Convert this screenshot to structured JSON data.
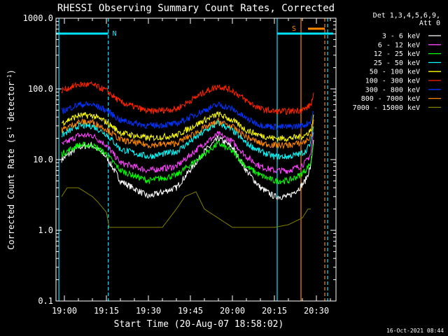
{
  "chart_data": {
    "type": "line",
    "title": "RHESSI Observing Summary Count Rates, Corrected",
    "xlabel": "Start Time (20-Aug-07 18:58:02)",
    "ylabel": "Corrected Count Rate (s⁻¹ detector⁻¹)",
    "ylabel_base": "Corrected Count Rate (s",
    "ylabel_sup1": "-1",
    "ylabel_mid": " detector",
    "ylabel_sup2": "-1",
    "ylabel_end": ")",
    "yscale": "log",
    "ylim": [
      0.1,
      1000
    ],
    "xlim": [
      "18:57:00",
      "20:37:00"
    ],
    "x_ticks": [
      "19:00",
      "19:15",
      "19:30",
      "19:45",
      "20:00",
      "20:15",
      "20:30"
    ],
    "y_ticks": [
      "0.1",
      "1.0",
      "10.0",
      "100.0",
      "1000.0"
    ],
    "legend_header": [
      "Det 1,3,4,5,6,9,",
      "Att 0"
    ],
    "legend_position": "right, outside",
    "series": [
      {
        "name": "3 - 6 keV",
        "color": "#ffffff",
        "x": [
          "18:59",
          "19:05",
          "19:10",
          "19:15",
          "19:20",
          "19:30",
          "19:40",
          "19:50",
          "19:55",
          "20:00",
          "20:05",
          "20:10",
          "20:15",
          "20:20",
          "20:24",
          "20:26",
          "20:28",
          "20:29"
        ],
        "values": [
          10,
          15,
          16,
          11,
          5,
          3,
          4,
          13,
          20,
          15,
          7,
          4,
          3,
          3,
          4,
          5,
          8,
          20
        ]
      },
      {
        "name": "6 - 12 keV",
        "color": "#ff44ff",
        "x": [
          "18:59",
          "19:05",
          "19:10",
          "19:15",
          "19:20",
          "19:30",
          "19:40",
          "19:50",
          "19:55",
          "20:00",
          "20:05",
          "20:10",
          "20:15",
          "20:20",
          "20:24",
          "20:26",
          "20:28",
          "20:29"
        ],
        "values": [
          16,
          22,
          22,
          16,
          9,
          7,
          8,
          17,
          23,
          18,
          11,
          8,
          7,
          7,
          8,
          9,
          12,
          25
        ]
      },
      {
        "name": "12 - 25 keV",
        "color": "#00ff00",
        "x": [
          "18:59",
          "19:05",
          "19:10",
          "19:15",
          "19:20",
          "19:30",
          "19:40",
          "19:50",
          "19:55",
          "20:00",
          "20:05",
          "20:10",
          "20:15",
          "20:20",
          "20:24",
          "20:26",
          "20:28",
          "20:29"
        ],
        "values": [
          12,
          16,
          16,
          12,
          7,
          5,
          6,
          12,
          17,
          13,
          8,
          6,
          5,
          5,
          6,
          7,
          9,
          18
        ]
      },
      {
        "name": "25 - 50 keV",
        "color": "#00ffff",
        "x": [
          "18:59",
          "19:05",
          "19:10",
          "19:15",
          "19:20",
          "19:30",
          "19:40",
          "19:50",
          "19:55",
          "20:00",
          "20:05",
          "20:10",
          "20:15",
          "20:20",
          "20:24",
          "20:26",
          "20:28",
          "20:29"
        ],
        "values": [
          22,
          30,
          30,
          23,
          14,
          11,
          13,
          25,
          33,
          26,
          17,
          13,
          11,
          11,
          12,
          13,
          17,
          30
        ]
      },
      {
        "name": "50 - 100 keV",
        "color": "#ffff00",
        "x": [
          "18:59",
          "19:05",
          "19:10",
          "19:15",
          "19:20",
          "19:30",
          "19:40",
          "19:50",
          "19:55",
          "20:00",
          "20:05",
          "20:10",
          "20:15",
          "20:20",
          "20:24",
          "20:26",
          "20:28",
          "20:29"
        ],
        "values": [
          33,
          42,
          42,
          34,
          24,
          20,
          22,
          36,
          44,
          36,
          26,
          22,
          20,
          20,
          21,
          22,
          26,
          40
        ]
      },
      {
        "name": "100 - 300 keV",
        "color": "#ff2200",
        "x": [
          "18:59",
          "19:05",
          "19:10",
          "19:15",
          "19:20",
          "19:30",
          "19:40",
          "19:50",
          "19:55",
          "20:00",
          "20:05",
          "20:10",
          "20:15",
          "20:20",
          "20:24",
          "20:26",
          "20:28",
          "20:29"
        ],
        "values": [
          95,
          115,
          115,
          95,
          65,
          48,
          52,
          90,
          110,
          95,
          68,
          52,
          48,
          48,
          50,
          52,
          60,
          80
        ]
      },
      {
        "name": "300 - 800 keV",
        "color": "#0033ff",
        "x": [
          "18:59",
          "19:05",
          "19:10",
          "19:15",
          "19:20",
          "19:30",
          "19:40",
          "19:50",
          "19:55",
          "20:00",
          "20:05",
          "20:10",
          "20:15",
          "20:20",
          "20:24",
          "20:26",
          "20:28",
          "20:29"
        ],
        "values": [
          48,
          60,
          60,
          50,
          36,
          30,
          32,
          50,
          60,
          52,
          38,
          31,
          29,
          29,
          30,
          31,
          35,
          50
        ]
      },
      {
        "name": "800 - 7000 keV",
        "color": "#ff8800",
        "x": [
          "18:59",
          "19:05",
          "19:10",
          "19:15",
          "19:20",
          "19:30",
          "19:40",
          "19:50",
          "19:55",
          "20:00",
          "20:05",
          "20:10",
          "20:15",
          "20:20",
          "20:24",
          "20:26",
          "20:28",
          "20:29"
        ],
        "values": [
          26,
          34,
          34,
          27,
          19,
          16,
          17,
          28,
          35,
          29,
          21,
          17,
          16,
          16,
          17,
          18,
          21,
          35
        ]
      },
      {
        "name": "7000 - 15000 keV",
        "color": "#808000",
        "x": [
          "18:59",
          "19:01",
          "19:05",
          "19:10",
          "19:12",
          "19:15",
          "19:16",
          "19:18",
          "19:20",
          "19:35",
          "19:40",
          "19:43",
          "19:47",
          "19:50",
          "20:00",
          "20:15",
          "20:20",
          "20:25",
          "20:27",
          "20:28"
        ],
        "values": [
          3,
          4,
          4,
          3,
          2.5,
          1.8,
          1.1,
          1.1,
          1.1,
          1.1,
          2,
          3,
          3.5,
          2,
          1.1,
          1.1,
          1.2,
          1.5,
          2,
          2
        ]
      }
    ],
    "annotations": [
      {
        "text": "N",
        "color": "#00e5ff"
      },
      {
        "text": "S",
        "color": "#ff8800"
      }
    ],
    "night_intervals": [
      [
        "18:57:00",
        "19:15:40"
      ],
      [
        "20:16:00",
        "20:36:00"
      ]
    ],
    "vertical_lines": [
      {
        "time": "18:58:02",
        "color": "#00e5ff",
        "style": "solid"
      },
      {
        "time": "19:15:40",
        "color": "#00e5ff",
        "style": "dashed"
      },
      {
        "time": "20:16:00",
        "color": "#00e5ff",
        "style": "solid"
      },
      {
        "time": "20:24:30",
        "color": "#ff8800",
        "style": "solid"
      },
      {
        "time": "20:33:00",
        "color": "#ff8800",
        "style": "dashed"
      },
      {
        "time": "20:34:00",
        "color": "#00e5ff",
        "style": "dashed"
      }
    ],
    "saa_interval": [
      "20:24:30",
      "20:33:00"
    ],
    "timestamp": "16-Oct-2021 08:44"
  }
}
